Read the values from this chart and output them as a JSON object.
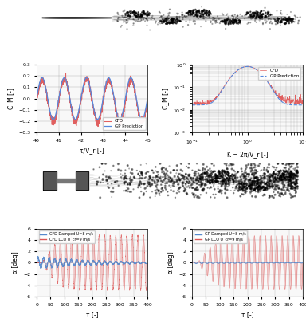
{
  "plot_top_left": {
    "xlabel": "τ/V_r [-]",
    "ylabel": "C_M [-]",
    "xlim": [
      40,
      45
    ],
    "ylim": [
      -0.3,
      0.3
    ],
    "xticks": [
      40,
      41,
      42,
      43,
      44,
      45
    ],
    "yticks": [
      -0.3,
      -0.2,
      -0.1,
      0.0,
      0.1,
      0.2,
      0.3
    ],
    "cfd_color": "#e06060",
    "gp_color": "#5588dd",
    "legend": [
      "CFD",
      "GP Prediction"
    ]
  },
  "plot_top_right": {
    "xlabel": "K = 2π/V_r [-]",
    "ylabel": "C_M [-]",
    "cfd_color": "#e06060",
    "gp_color": "#5588dd",
    "legend": [
      "CFD",
      "GP Prediction"
    ]
  },
  "plot_bottom_left": {
    "xlabel": "τ [-]",
    "ylabel": "α [deg]",
    "xlim": [
      0,
      400
    ],
    "ylim": [
      -6,
      6
    ],
    "xticks": [
      0,
      50,
      100,
      150,
      200,
      250,
      300,
      350,
      400
    ],
    "yticks": [
      -6,
      -4,
      -2,
      0,
      2,
      4,
      6
    ],
    "damped_color": "#5588cc",
    "lco_color": "#dd5555",
    "legend": [
      "CFD Damped U=8 m/s",
      "CFD LCO U_cr=9 m/s"
    ]
  },
  "plot_bottom_right": {
    "xlabel": "τ [-]",
    "ylabel": "α [deg]",
    "xlim": [
      0,
      400
    ],
    "ylim": [
      -6,
      6
    ],
    "xticks": [
      0,
      50,
      100,
      150,
      200,
      250,
      300,
      350,
      400
    ],
    "yticks": [
      -6,
      -4,
      -2,
      0,
      2,
      4,
      6
    ],
    "damped_color": "#5588cc",
    "lco_color": "#dd5555",
    "legend": [
      "GP Damped U=8 m/s",
      "GP LCO U_cr=9 m/s"
    ]
  },
  "bg_color": "#ffffff",
  "figure_size": [
    3.84,
    4.0
  ],
  "dpi": 100
}
